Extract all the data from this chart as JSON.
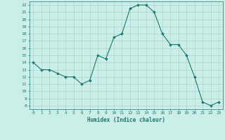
{
  "x": [
    0,
    1,
    2,
    3,
    4,
    5,
    6,
    7,
    8,
    9,
    10,
    11,
    12,
    13,
    14,
    15,
    16,
    17,
    18,
    19,
    20,
    21,
    22,
    23
  ],
  "y": [
    14,
    13,
    13,
    12.5,
    12,
    12,
    11,
    11.5,
    15,
    14.5,
    17.5,
    18,
    21.5,
    22,
    22,
    21,
    18,
    16.5,
    16.5,
    15,
    12,
    8.5,
    8,
    8.5
  ],
  "line_color": "#1a7a6a",
  "marker_color": "#1a7a6a",
  "bg_color": "#cceee8",
  "grid_color": "#aad4cc",
  "xlabel": "Humidex (Indice chaleur)",
  "ylabel_ticks": [
    8,
    9,
    10,
    11,
    12,
    13,
    14,
    15,
    16,
    17,
    18,
    19,
    20,
    21,
    22
  ],
  "ylim": [
    7.5,
    22.5
  ],
  "xlim": [
    -0.5,
    23.5
  ],
  "xticks": [
    0,
    1,
    2,
    3,
    4,
    5,
    6,
    7,
    8,
    9,
    10,
    11,
    12,
    13,
    14,
    15,
    16,
    17,
    18,
    19,
    20,
    21,
    22,
    23
  ]
}
